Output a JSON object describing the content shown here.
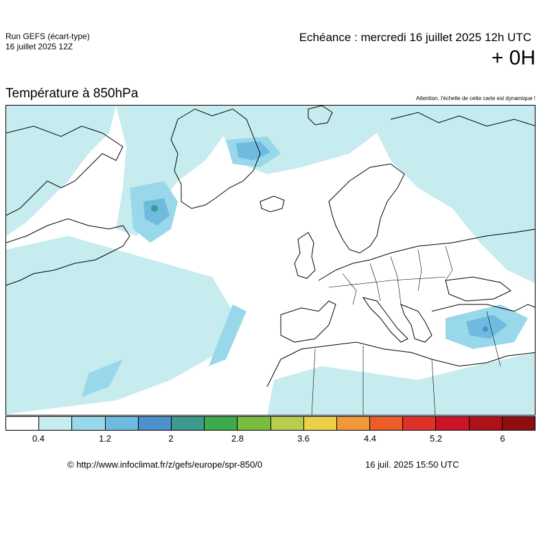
{
  "header": {
    "run_label": "Run GEFS (écart-type)",
    "run_date": "16 juillet 2025 12Z",
    "echeance": "Echéance : mercredi 16 juillet 2025 12h UTC",
    "lead_time": "+ 0H"
  },
  "map": {
    "title": "Température à 850hPa",
    "notice": "Attention, l'échelle de cette carte est dynamique !",
    "region": "Europe / North Atlantic",
    "colors": {
      "land_outline": "#000000",
      "low_spread": "#c7ecef",
      "mid_spread": "#8fd3e8",
      "high_spread": "#5aa8d8",
      "peak_spread": "#3fa08f"
    }
  },
  "legend": {
    "colors": [
      "#ffffff",
      "#c7ecef",
      "#98d8ea",
      "#6fbbe0",
      "#4c92cc",
      "#3e9a8e",
      "#3cab4c",
      "#79bd3f",
      "#b9cc4e",
      "#ecd04a",
      "#f0983a",
      "#ec5d2a",
      "#df302a",
      "#cc1426",
      "#b01019",
      "#8f0e12"
    ],
    "ticks": [
      "0.4",
      "1.2",
      "2",
      "2.8",
      "3.6",
      "4.4",
      "5.2",
      "6"
    ]
  },
  "footer": {
    "url": "© http://www.infoclimat.fr/z/gefs/europe/spr-850/0",
    "generated": "16 juil. 2025 15:50 UTC"
  }
}
